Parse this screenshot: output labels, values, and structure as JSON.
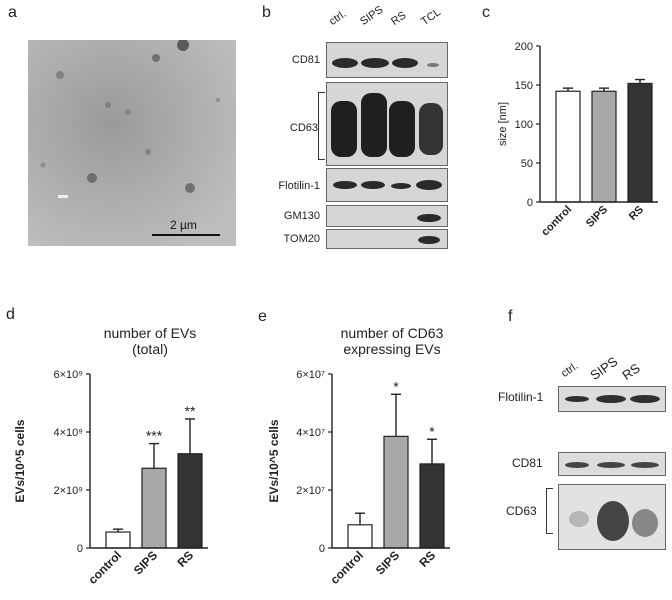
{
  "panel_letters": {
    "a": "a",
    "b": "b",
    "c": "c",
    "d": "d",
    "e": "e",
    "f": "f"
  },
  "panel_a": {
    "scale_label": "2 µm"
  },
  "panel_b": {
    "lanes": [
      "ctrl.",
      "SIPS",
      "RS",
      "TCL"
    ],
    "blots": [
      "CD81",
      "CD63",
      "Flotilin-1",
      "GM130",
      "TOM20"
    ]
  },
  "panel_f": {
    "lanes": [
      "ctrl.",
      "SIPS",
      "RS"
    ],
    "blots": [
      "Flotilin-1",
      "CD81",
      "CD63"
    ]
  },
  "chart_data": [
    {
      "id": "c",
      "type": "bar",
      "categories": [
        "control",
        "SIPS",
        "RS"
      ],
      "values": [
        142,
        142,
        152
      ],
      "errors": [
        4,
        4,
        5
      ],
      "ylabel": "size [nm]",
      "ylim": [
        0,
        200
      ],
      "yticks": [
        "0",
        "50",
        "100",
        "150",
        "200"
      ],
      "colors": [
        "#ffffff",
        "#a8a8a8",
        "#333333"
      ]
    },
    {
      "id": "d",
      "type": "bar",
      "title_lines": [
        "number of EVs",
        "(total)"
      ],
      "categories": [
        "control",
        "SIPS",
        "RS"
      ],
      "values": [
        0.55,
        2.75,
        3.25
      ],
      "errors": [
        0.1,
        0.85,
        1.2
      ],
      "significance": [
        "",
        "***",
        "**"
      ],
      "ylabel": "EVs/10^5 cells",
      "ylim": [
        0,
        6
      ],
      "yticks": [
        "0",
        "2×10⁹",
        "4×10⁹",
        "6×10⁹"
      ],
      "colors": [
        "#ffffff",
        "#a8a8a8",
        "#333333"
      ]
    },
    {
      "id": "e",
      "type": "bar",
      "title_lines": [
        "number of CD63",
        "expressing EVs"
      ],
      "categories": [
        "control",
        "SIPS",
        "RS"
      ],
      "values": [
        0.8,
        3.85,
        2.9
      ],
      "errors": [
        0.4,
        1.45,
        0.85
      ],
      "significance": [
        "",
        "*",
        "*"
      ],
      "ylabel": "EVs/10^5 cells",
      "ylim": [
        0,
        6
      ],
      "yticks": [
        "0",
        "2×10⁷",
        "4×10⁷",
        "6×10⁷"
      ],
      "colors": [
        "#ffffff",
        "#a8a8a8",
        "#333333"
      ]
    }
  ]
}
